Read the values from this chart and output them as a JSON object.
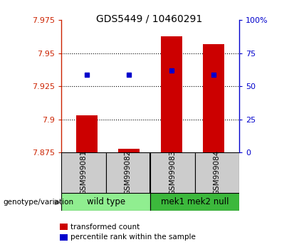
{
  "title": "GDS5449 / 10460291",
  "samples": [
    "GSM999081",
    "GSM999082",
    "GSM999083",
    "GSM999084"
  ],
  "groups": [
    {
      "label": "wild type",
      "indices": [
        0,
        1
      ],
      "color": "#90ee90"
    },
    {
      "label": "mek1 mek2 null",
      "indices": [
        2,
        3
      ],
      "color": "#3cb83c"
    }
  ],
  "y_min": 7.875,
  "y_max": 7.975,
  "y_ticks": [
    7.875,
    7.9,
    7.925,
    7.95,
    7.975
  ],
  "y_tick_labels": [
    "7.875",
    "7.9",
    "7.925",
    "7.95",
    "7.975"
  ],
  "right_y_ticks": [
    0,
    25,
    50,
    75,
    100
  ],
  "right_y_tick_labels": [
    "0",
    "25",
    "50",
    "75",
    "100%"
  ],
  "bar_color": "#cc0000",
  "dot_color": "#0000cc",
  "bar_base": 7.875,
  "red_bar_tops": [
    7.903,
    7.878,
    7.963,
    7.957
  ],
  "blue_dot_values": [
    7.934,
    7.934,
    7.937,
    7.934
  ],
  "bar_width": 0.5,
  "genotype_label": "genotype/variation",
  "legend_red": "transformed count",
  "legend_blue": "percentile rank within the sample",
  "axis_color_left": "#cc2200",
  "axis_color_right": "#0000cc",
  "bg_plot": "#ffffff",
  "bg_sample_area": "#cccccc",
  "bg_fig": "#ffffff",
  "group_border_color": "#000000"
}
